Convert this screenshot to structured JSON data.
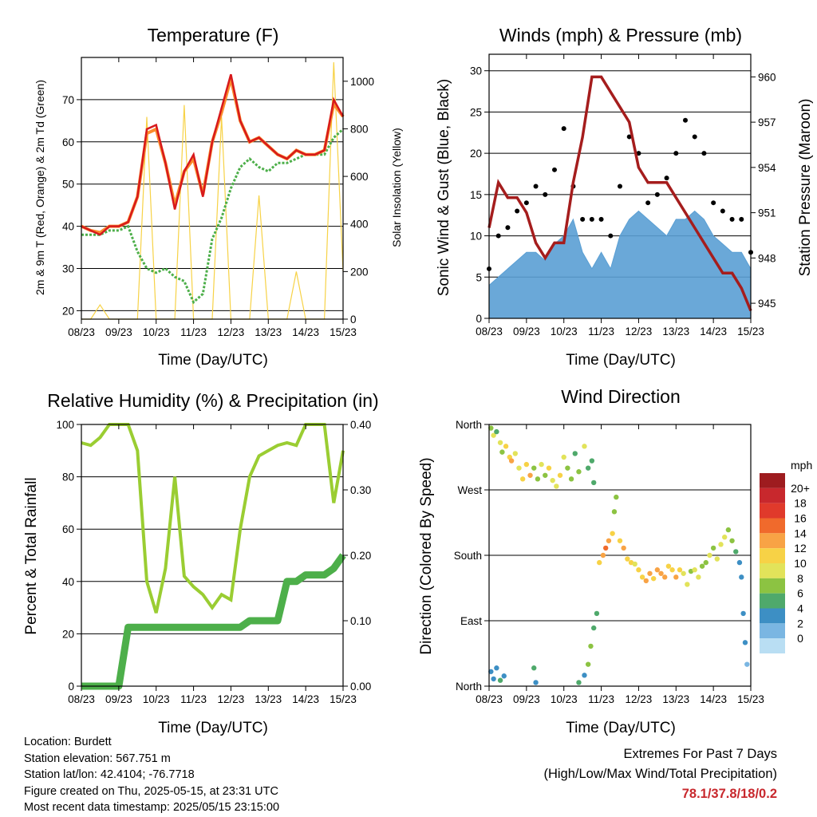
{
  "x_ticks": [
    "08/23",
    "09/23",
    "10/23",
    "11/23",
    "12/23",
    "13/23",
    "14/23",
    "15/23"
  ],
  "temperature_panel": {
    "title": "Temperature (F)",
    "xlabel": "Time (Day/UTC)",
    "ylabel_left": "2m & 9m T (Red, Orange) & 2m Td (Green)",
    "ylabel_right": "Solar Insolation (Yellow)",
    "left_ticks": [
      "20",
      "30",
      "40",
      "50",
      "60",
      "70"
    ],
    "right_ticks": [
      "0",
      "200",
      "400",
      "600",
      "800",
      "1000"
    ]
  },
  "wind_panel": {
    "title": "Winds (mph) & Pressure (mb)",
    "xlabel": "Time (Day/UTC)",
    "ylabel_left": "Sonic Wind & Gust (Blue, Black)",
    "ylabel_right": "Station Pressure (Maroon)",
    "left_ticks": [
      "0",
      "5",
      "10",
      "15",
      "20",
      "25",
      "30"
    ],
    "right_ticks": [
      "945",
      "948",
      "951",
      "954",
      "957",
      "960"
    ]
  },
  "rh_panel": {
    "title": "Relative Humidity (%) & Precipitation (in)",
    "xlabel": "Time (Day/UTC)",
    "ylabel_left": "Percent & Total Rainfall",
    "left_ticks": [
      "0",
      "20",
      "40",
      "60",
      "80",
      "100"
    ],
    "right_ticks": [
      "0.00",
      "0.10",
      "0.20",
      "0.30",
      "0.40"
    ]
  },
  "dir_panel": {
    "title": "Wind Direction",
    "xlabel": "Time (Day/UTC)",
    "ylabel_left": "Direction (Colored By Speed)",
    "left_ticks": [
      "North",
      "East",
      "South",
      "West",
      "North"
    ],
    "legend_title": "mph",
    "legend_labels": [
      "20+",
      "18",
      "16",
      "14",
      "12",
      "10",
      "8",
      "6",
      "4",
      "2",
      "0"
    ],
    "legend_colors": [
      "#9e1c1f",
      "#c8282d",
      "#e03a2b",
      "#f06a2c",
      "#f8a345",
      "#f7d246",
      "#e2e35a",
      "#8cc342",
      "#4fa96b",
      "#3d8fc4",
      "#7ab6e2",
      "#b9def3"
    ]
  },
  "info": {
    "location": "Location: Burdett",
    "elevation": "Station elevation: 567.751 m",
    "latlon": "Station lat/lon: 42.4104; -76.7718",
    "created": "Figure created on Thu, 2025-05-15, at 23:31 UTC",
    "recent": "Most recent data timestamp: 2025/05/15 23:15:00"
  },
  "extremes": {
    "title": "Extremes For Past 7 Days",
    "subtitle": "(High/Low/Max Wind/Total Precipitation)",
    "values": "78.1/37.8/18/0.2"
  },
  "chart_data": [
    {
      "type": "line",
      "title": "Temperature (F)",
      "xlabel": "Time (Day/UTC)",
      "ylabel": "2m & 9m T (Red, Orange) & 2m Td (Green)",
      "y2label": "Solar Insolation (Yellow)",
      "ylim": [
        18,
        80
      ],
      "y2lim": [
        0,
        1100
      ],
      "xlim": [
        0,
        7
      ],
      "x": [
        0,
        0.25,
        0.5,
        0.75,
        1.0,
        1.25,
        1.5,
        1.75,
        2.0,
        2.25,
        2.5,
        2.75,
        3.0,
        3.25,
        3.5,
        3.75,
        4.0,
        4.25,
        4.5,
        4.75,
        5.0,
        5.25,
        5.5,
        5.75,
        6.0,
        6.25,
        6.5,
        6.75,
        7.0
      ],
      "series": [
        {
          "name": "2m T",
          "color": "#d7191c",
          "values": [
            40,
            39,
            38,
            40,
            40,
            41,
            47,
            63,
            64,
            55,
            44,
            53,
            57,
            47,
            60,
            68,
            76,
            65,
            60,
            61,
            59,
            57,
            56,
            58,
            57,
            57,
            58,
            70,
            66
          ]
        },
        {
          "name": "9m T",
          "color": "#fb8c2c",
          "values": [
            40,
            39,
            38.5,
            40,
            40,
            41,
            47,
            62,
            63,
            55,
            45,
            53,
            56,
            47.5,
            60,
            67,
            75,
            65,
            60,
            61,
            59,
            57,
            56,
            58,
            57,
            57,
            58,
            69,
            66
          ]
        },
        {
          "name": "2m Td",
          "color": "#4daf4a",
          "values": [
            38,
            38,
            38,
            39,
            39,
            40,
            34,
            30,
            29,
            30,
            28,
            27,
            22,
            24,
            37,
            42,
            49,
            54,
            56,
            54,
            53,
            55,
            55,
            56,
            57,
            57,
            57,
            61,
            63
          ]
        },
        {
          "name": "Solar Insolation",
          "axis": "y2",
          "color": "#f7d246",
          "values": [
            0,
            0,
            60,
            0,
            0,
            0,
            0,
            850,
            0,
            0,
            0,
            900,
            0,
            0,
            0,
            850,
            0,
            0,
            0,
            520,
            0,
            0,
            0,
            200,
            0,
            0,
            0,
            1080,
            200
          ]
        }
      ]
    },
    {
      "type": "line",
      "title": "Winds (mph) & Pressure (mb)",
      "xlabel": "Time (Day/UTC)",
      "ylabel": "Sonic Wind & Gust (Blue, Black)",
      "y2label": "Station Pressure (Maroon)",
      "ylim": [
        0,
        32
      ],
      "y2lim": [
        944,
        961.5
      ],
      "xlim": [
        0,
        7
      ],
      "x": [
        0,
        0.25,
        0.5,
        0.75,
        1.0,
        1.25,
        1.5,
        1.75,
        2.0,
        2.25,
        2.5,
        2.75,
        3.0,
        3.25,
        3.5,
        3.75,
        4.0,
        4.25,
        4.5,
        4.75,
        5.0,
        5.25,
        5.5,
        5.75,
        6.0,
        6.25,
        6.5,
        6.75,
        7.0
      ],
      "series": [
        {
          "name": "Sonic Wind",
          "color": "#5a9fd4",
          "values": [
            4,
            5,
            6,
            7,
            8,
            8,
            7,
            9,
            10,
            12,
            8,
            6,
            8,
            6,
            10,
            12,
            13,
            12,
            11,
            10,
            12,
            12,
            13,
            12,
            10,
            9,
            8,
            8,
            6
          ]
        },
        {
          "name": "Gust",
          "color": "#000000",
          "values": [
            6,
            10,
            11,
            13,
            14,
            16,
            15,
            18,
            23,
            16,
            12,
            12,
            12,
            10,
            16,
            22,
            20,
            14,
            15,
            17,
            20,
            24,
            22,
            20,
            14,
            13,
            12,
            12,
            8
          ]
        },
        {
          "name": "Station Pressure",
          "axis": "y2",
          "color": "#a51d1d",
          "values": [
            950,
            953,
            952,
            952,
            951,
            949,
            948,
            949,
            949,
            953,
            956,
            960,
            960,
            959,
            958,
            957,
            954,
            953,
            953,
            953,
            952,
            951,
            950,
            949,
            948,
            947,
            947,
            946,
            944.5
          ]
        }
      ]
    },
    {
      "type": "line",
      "title": "Relative Humidity (%) & Precipitation (in)",
      "xlabel": "Time (Day/UTC)",
      "ylabel": "Percent & Total Rainfall",
      "ylim": [
        0,
        100
      ],
      "y2lim": [
        0,
        0.4
      ],
      "xlim": [
        0,
        7
      ],
      "x": [
        0,
        0.25,
        0.5,
        0.75,
        1.0,
        1.25,
        1.5,
        1.75,
        2.0,
        2.25,
        2.5,
        2.75,
        3.0,
        3.25,
        3.5,
        3.75,
        4.0,
        4.25,
        4.5,
        4.75,
        5.0,
        5.25,
        5.5,
        5.75,
        6.0,
        6.25,
        6.5,
        6.75,
        7.0
      ],
      "series": [
        {
          "name": "Relative Humidity",
          "color": "#9acd32",
          "values": [
            93,
            92,
            95,
            100,
            100,
            100,
            90,
            40,
            28,
            45,
            80,
            42,
            38,
            35,
            30,
            35,
            33,
            60,
            80,
            88,
            90,
            92,
            93,
            92,
            100,
            100,
            100,
            70,
            90
          ]
        },
        {
          "name": "Total Precipitation",
          "axis": "y2",
          "color": "#4daf4a",
          "values": [
            0,
            0,
            0,
            0,
            0,
            0.09,
            0.09,
            0.09,
            0.09,
            0.09,
            0.09,
            0.09,
            0.09,
            0.09,
            0.09,
            0.09,
            0.09,
            0.09,
            0.1,
            0.1,
            0.1,
            0.1,
            0.16,
            0.16,
            0.17,
            0.17,
            0.17,
            0.18,
            0.2
          ]
        }
      ]
    },
    {
      "type": "scatter",
      "title": "Wind Direction",
      "xlabel": "Time (Day/UTC)",
      "ylabel": "Direction (Colored By Speed)",
      "ylim": [
        0,
        360
      ],
      "xlim": [
        0,
        7
      ],
      "points": [
        {
          "x": 0.05,
          "y": 355,
          "s": 6
        },
        {
          "x": 0.12,
          "y": 345,
          "s": 8
        },
        {
          "x": 0.2,
          "y": 350,
          "s": 5
        },
        {
          "x": 0.3,
          "y": 335,
          "s": 9
        },
        {
          "x": 0.35,
          "y": 322,
          "s": 7
        },
        {
          "x": 0.45,
          "y": 330,
          "s": 10
        },
        {
          "x": 0.55,
          "y": 315,
          "s": 11
        },
        {
          "x": 0.6,
          "y": 310,
          "s": 12
        },
        {
          "x": 0.7,
          "y": 320,
          "s": 9
        },
        {
          "x": 0.8,
          "y": 300,
          "s": 8
        },
        {
          "x": 0.9,
          "y": 285,
          "s": 10
        },
        {
          "x": 1.0,
          "y": 305,
          "s": 11
        },
        {
          "x": 1.1,
          "y": 290,
          "s": 12
        },
        {
          "x": 1.2,
          "y": 300,
          "s": 7
        },
        {
          "x": 1.3,
          "y": 285,
          "s": 6
        },
        {
          "x": 1.4,
          "y": 305,
          "s": 8
        },
        {
          "x": 1.5,
          "y": 290,
          "s": 7
        },
        {
          "x": 1.6,
          "y": 300,
          "s": 10
        },
        {
          "x": 1.7,
          "y": 283,
          "s": 9
        },
        {
          "x": 1.8,
          "y": 275,
          "s": 8
        },
        {
          "x": 1.9,
          "y": 290,
          "s": 11
        },
        {
          "x": 2.0,
          "y": 315,
          "s": 9
        },
        {
          "x": 2.1,
          "y": 300,
          "s": 7
        },
        {
          "x": 2.2,
          "y": 285,
          "s": 6
        },
        {
          "x": 2.3,
          "y": 320,
          "s": 5
        },
        {
          "x": 2.4,
          "y": 295,
          "s": 6
        },
        {
          "x": 2.55,
          "y": 330,
          "s": 8
        },
        {
          "x": 2.65,
          "y": 300,
          "s": 5
        },
        {
          "x": 2.75,
          "y": 310,
          "s": 4
        },
        {
          "x": 2.8,
          "y": 280,
          "s": 4
        },
        {
          "x": 0.05,
          "y": 20,
          "s": 3
        },
        {
          "x": 0.12,
          "y": 10,
          "s": 2
        },
        {
          "x": 0.2,
          "y": 25,
          "s": 3
        },
        {
          "x": 0.3,
          "y": 8,
          "s": 4
        },
        {
          "x": 0.4,
          "y": 14,
          "s": 3
        },
        {
          "x": 1.2,
          "y": 25,
          "s": 4
        },
        {
          "x": 1.25,
          "y": 5,
          "s": 3
        },
        {
          "x": 2.4,
          "y": 5,
          "s": 4
        },
        {
          "x": 2.55,
          "y": 15,
          "s": 3
        },
        {
          "x": 2.65,
          "y": 30,
          "s": 7
        },
        {
          "x": 2.72,
          "y": 55,
          "s": 6
        },
        {
          "x": 2.8,
          "y": 80,
          "s": 5
        },
        {
          "x": 2.88,
          "y": 100,
          "s": 4
        },
        {
          "x": 2.95,
          "y": 170,
          "s": 11
        },
        {
          "x": 3.05,
          "y": 180,
          "s": 12
        },
        {
          "x": 3.12,
          "y": 190,
          "s": 14
        },
        {
          "x": 3.2,
          "y": 200,
          "s": 13
        },
        {
          "x": 3.3,
          "y": 210,
          "s": 10
        },
        {
          "x": 3.35,
          "y": 240,
          "s": 7
        },
        {
          "x": 3.4,
          "y": 260,
          "s": 6
        },
        {
          "x": 3.5,
          "y": 200,
          "s": 11
        },
        {
          "x": 3.6,
          "y": 190,
          "s": 12
        },
        {
          "x": 3.7,
          "y": 175,
          "s": 11
        },
        {
          "x": 3.8,
          "y": 170,
          "s": 10
        },
        {
          "x": 3.9,
          "y": 168,
          "s": 9
        },
        {
          "x": 4.0,
          "y": 160,
          "s": 10
        },
        {
          "x": 4.1,
          "y": 150,
          "s": 11
        },
        {
          "x": 4.2,
          "y": 145,
          "s": 12
        },
        {
          "x": 4.3,
          "y": 155,
          "s": 13
        },
        {
          "x": 4.4,
          "y": 148,
          "s": 11
        },
        {
          "x": 4.5,
          "y": 160,
          "s": 12
        },
        {
          "x": 4.6,
          "y": 155,
          "s": 13
        },
        {
          "x": 4.7,
          "y": 150,
          "s": 12
        },
        {
          "x": 4.8,
          "y": 165,
          "s": 10
        },
        {
          "x": 4.9,
          "y": 160,
          "s": 11
        },
        {
          "x": 5.0,
          "y": 150,
          "s": 12
        },
        {
          "x": 5.1,
          "y": 160,
          "s": 10
        },
        {
          "x": 5.2,
          "y": 155,
          "s": 9
        },
        {
          "x": 5.3,
          "y": 140,
          "s": 8
        },
        {
          "x": 5.4,
          "y": 158,
          "s": 7
        },
        {
          "x": 5.5,
          "y": 160,
          "s": 9
        },
        {
          "x": 5.6,
          "y": 150,
          "s": 8
        },
        {
          "x": 5.7,
          "y": 165,
          "s": 6
        },
        {
          "x": 5.8,
          "y": 170,
          "s": 7
        },
        {
          "x": 5.9,
          "y": 180,
          "s": 8
        },
        {
          "x": 6.0,
          "y": 190,
          "s": 7
        },
        {
          "x": 6.1,
          "y": 175,
          "s": 8
        },
        {
          "x": 6.2,
          "y": 195,
          "s": 9
        },
        {
          "x": 6.3,
          "y": 205,
          "s": 8
        },
        {
          "x": 6.4,
          "y": 215,
          "s": 7
        },
        {
          "x": 6.5,
          "y": 200,
          "s": 6
        },
        {
          "x": 6.6,
          "y": 185,
          "s": 4
        },
        {
          "x": 6.7,
          "y": 170,
          "s": 3
        },
        {
          "x": 6.75,
          "y": 150,
          "s": 2
        },
        {
          "x": 6.8,
          "y": 100,
          "s": 3
        },
        {
          "x": 6.85,
          "y": 60,
          "s": 2
        },
        {
          "x": 6.9,
          "y": 30,
          "s": 1
        }
      ]
    }
  ]
}
